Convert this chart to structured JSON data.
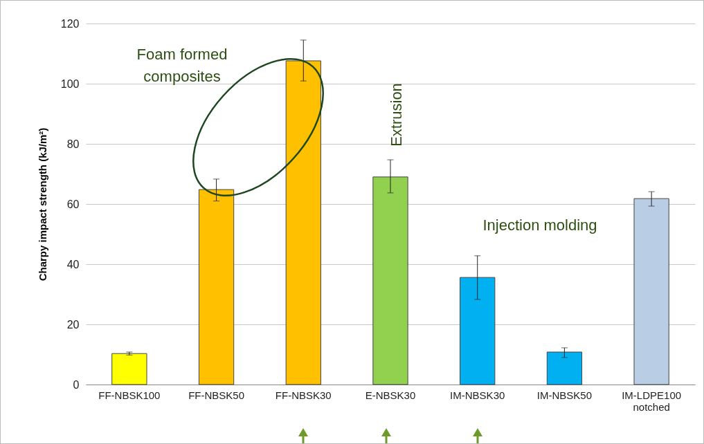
{
  "chart_data": {
    "type": "bar",
    "ylabel": "Charpy impact strength (kJ/m²)",
    "categories": [
      "FF-NBSK100",
      "FF-NBSK50",
      "FF-NBSK30",
      "E-NBSK30",
      "IM-NBSK30",
      "IM-NBSK50",
      "IM-LDPE100 notched"
    ],
    "values": [
      10.3,
      64.8,
      107.6,
      69.0,
      35.6,
      10.8,
      61.8
    ],
    "colors": [
      "#ffff00",
      "#ffc000",
      "#ffc000",
      "#92d050",
      "#00b0f0",
      "#00b0f0",
      "#b9cde5"
    ],
    "errors": [
      [
        9.8,
        10.8
      ],
      [
        61.0,
        68.3
      ],
      [
        100.9,
        114.5
      ],
      [
        63.7,
        74.7
      ],
      [
        28.3,
        42.8
      ],
      [
        9.0,
        12.2
      ],
      [
        59.3,
        64.1
      ]
    ],
    "ylim": [
      0,
      120
    ],
    "yticks": [
      0,
      20,
      40,
      60,
      80,
      100,
      120
    ],
    "grid": "y",
    "annotations": [
      "Foam formed composites",
      "Extrusion",
      "Injection molding"
    ]
  }
}
